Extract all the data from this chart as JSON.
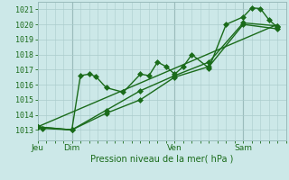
{
  "background_color": "#cce8e8",
  "grid_color": "#aacccc",
  "line_color": "#1a6b1a",
  "marker_color": "#1a6b1a",
  "xlabel": "Pression niveau de la mer( hPa )",
  "xlabel_ticks": [
    "Jeu",
    "Dim",
    "Ven",
    "Sam"
  ],
  "xlabel_tick_positions": [
    0,
    2,
    8,
    12
  ],
  "ylim": [
    1012.3,
    1021.5
  ],
  "yticks": [
    1013,
    1014,
    1015,
    1016,
    1017,
    1018,
    1019,
    1020,
    1021
  ],
  "series1_x": [
    0,
    0.3,
    2,
    2.5,
    3.0,
    3.4,
    4.0,
    5.0,
    6.0,
    6.5,
    7.0,
    7.5,
    8.0,
    8.5,
    9.0,
    10.0,
    11.0,
    12.0,
    12.5,
    13.0,
    13.5,
    14.0
  ],
  "series1_y": [
    1013.2,
    1013.1,
    1013.0,
    1016.6,
    1016.7,
    1016.55,
    1015.8,
    1015.5,
    1016.7,
    1016.6,
    1017.5,
    1017.2,
    1016.7,
    1017.2,
    1018.0,
    1017.1,
    1020.0,
    1020.5,
    1021.1,
    1021.05,
    1020.3,
    1019.8
  ],
  "series2_x": [
    0,
    2,
    4,
    6,
    8,
    10,
    12,
    14
  ],
  "series2_y": [
    1013.2,
    1013.0,
    1014.1,
    1015.0,
    1016.5,
    1017.2,
    1020.0,
    1019.7
  ],
  "series3_x": [
    0,
    2,
    4,
    6,
    8,
    10,
    12,
    14
  ],
  "series3_y": [
    1013.2,
    1013.0,
    1014.3,
    1015.6,
    1016.6,
    1017.5,
    1020.1,
    1019.9
  ],
  "series4_x": [
    0,
    14
  ],
  "series4_y": [
    1013.2,
    1020.0
  ],
  "xlim": [
    0,
    14.5
  ],
  "vline_x": [
    2,
    8,
    12
  ],
  "marker_size": 3.0,
  "linewidth": 1.0
}
